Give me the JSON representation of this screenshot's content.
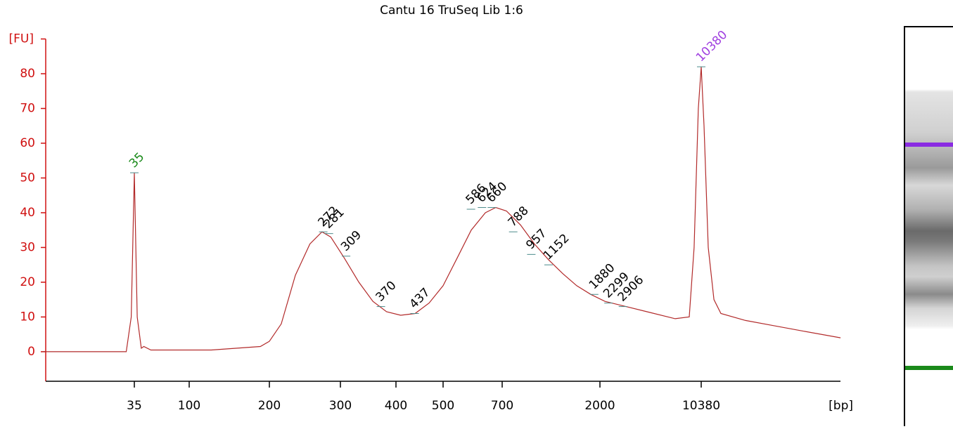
{
  "chart_data": {
    "type": "line",
    "title": "Cantu 16 TruSeq Lib 1:6",
    "y_label": "[FU]",
    "x_label": "[bp]",
    "color": "#b22a2a",
    "axis_color": "#d01010",
    "x": [
      6,
      30,
      33,
      35,
      37,
      40,
      42,
      48,
      121,
      185,
      200,
      214,
      232,
      252,
      270,
      284,
      306,
      330,
      355,
      381,
      409,
      438,
      468,
      500,
      542,
      587,
      636,
      675,
      733,
      852,
      990,
      1151,
      1340,
      1559,
      1813,
      2168,
      3055,
      4305,
      6800,
      8550,
      9250,
      9900,
      10380,
      10860,
      11640,
      12760,
      14300,
      21300,
      33700,
      53200,
      100000
    ],
    "values": [
      0,
      0,
      10,
      51.5,
      10,
      1,
      1.5,
      0.5,
      0.5,
      1.5,
      3,
      8,
      22,
      31,
      34.5,
      33,
      27,
      20,
      14.5,
      11.5,
      10.5,
      11,
      14,
      19,
      27,
      35,
      40,
      41.5,
      40.5,
      36.5,
      31,
      26.5,
      22.5,
      19,
      16.5,
      14.5,
      13,
      11.5,
      9.5,
      10,
      30,
      70,
      82,
      65,
      30,
      15,
      11,
      9,
      7.5,
      6,
      4
    ],
    "ylim": [
      -8.5,
      90
    ],
    "yticks": [
      0,
      10,
      20,
      30,
      40,
      50,
      60,
      70,
      80
    ],
    "xticks": [
      35,
      100,
      200,
      300,
      400,
      500,
      700,
      2000,
      10380
    ],
    "peaks": {
      "x": [
        35,
        272,
        281,
        309,
        370,
        437,
        586,
        624,
        660,
        788,
        957,
        1152,
        1880,
        2299,
        2906,
        10380
      ],
      "y": [
        51.5,
        34.5,
        34,
        27.5,
        13,
        11,
        41,
        41.5,
        41.5,
        34.5,
        28,
        25,
        16.5,
        14,
        13,
        82
      ],
      "colors": [
        "#1a8a1a",
        "#000000",
        "#000000",
        "#000000",
        "#000000",
        "#000000",
        "#000000",
        "#000000",
        "#000000",
        "#000000",
        "#000000",
        "#000000",
        "#000000",
        "#000000",
        "#000000",
        "#a040e0"
      ]
    }
  }
}
